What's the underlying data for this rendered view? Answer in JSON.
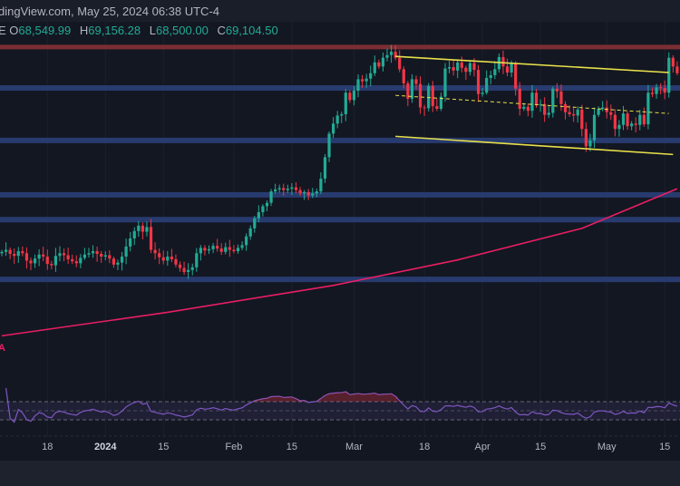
{
  "header": {
    "source_text": "dingView.com, May 25, 2024 06:38 UTC-4",
    "ohlc": {
      "prefix": "E",
      "o_label": "O",
      "o": "68,549.99",
      "h_label": "H",
      "h": "69,156.28",
      "l_label": "L",
      "l": "68,500.00",
      "c_label": "C",
      "c": "69,104.50"
    }
  },
  "ma_label": "A",
  "colors": {
    "up": "#22ab94",
    "down": "#f23645",
    "zone": "#2a3f78",
    "resistance": "#7a2e33",
    "channel": "#e8e04a",
    "ma": "#e91e63",
    "rsi": "#7e57c2",
    "background": "#131722"
  },
  "chart_data": {
    "type": "candlestick",
    "start_date": "2023-12-07",
    "ylim": [
      21950,
      75545
    ],
    "grid": true,
    "closes": [
      42500,
      42800,
      42200,
      41900,
      42600,
      42300,
      41200,
      40800,
      41500,
      42100,
      41800,
      40700,
      40500,
      41900,
      42300,
      42000,
      41400,
      41100,
      40800,
      41600,
      42100,
      42300,
      42600,
      42200,
      41800,
      42000,
      41500,
      40600,
      40900,
      41800,
      43300,
      44500,
      45600,
      46400,
      45500,
      46200,
      42800,
      42300,
      41700,
      41200,
      41800,
      41400,
      40600,
      40100,
      39500,
      39800,
      40200,
      42300,
      43100,
      42700,
      42900,
      43400,
      43000,
      42500,
      43200,
      42800,
      42600,
      43100,
      43500,
      44800,
      46000,
      47500,
      48400,
      49300,
      49800,
      51500,
      51800,
      52000,
      51700,
      51900,
      52100,
      51700,
      51200,
      51400,
      50900,
      51200,
      51500,
      53400,
      56600,
      60100,
      61600,
      62800,
      63000,
      66200,
      65100,
      66500,
      68200,
      67900,
      68300,
      69100,
      70700,
      70100,
      71400,
      71800,
      72300,
      71400,
      69700,
      67600,
      65300,
      68200,
      67500,
      64000,
      63900,
      67200,
      64200,
      63800,
      65600,
      69800,
      70000,
      69500,
      70700,
      69900,
      69300,
      70600,
      69600,
      66000,
      66200,
      68400,
      68800,
      69700,
      71500,
      70100,
      69200,
      70600,
      66800,
      63800,
      64100,
      63500,
      66200,
      64400,
      64500,
      62900,
      63200,
      66800,
      66400,
      64500,
      63300,
      63000,
      62800,
      63700,
      60800,
      58200,
      59100,
      62900,
      63800,
      64000,
      63300,
      62900,
      60800,
      61400,
      63100,
      61200,
      61600,
      61400,
      62900,
      61500,
      66200,
      66000,
      67000,
      66900,
      66200,
      71400,
      70100,
      69100
    ],
    "horizontal_levels": [
      66900,
      59100,
      51000,
      47300,
      38400
    ],
    "resistance_level": 73000,
    "channel": {
      "upper": [
        [
          "2024-03-11",
          71600
        ],
        [
          "2024-05-16",
          69200
        ]
      ],
      "middle": [
        [
          "2024-03-11",
          65800
        ],
        [
          "2024-05-16",
          63100
        ]
      ],
      "lower": [
        [
          "2024-03-11",
          59700
        ],
        [
          "2024-05-17",
          57000
        ]
      ]
    },
    "moving_average": [
      [
        0,
        30000
      ],
      [
        40,
        33500
      ],
      [
        80,
        37500
      ],
      [
        110,
        41300
      ],
      [
        140,
        46000
      ],
      [
        163,
        51900
      ]
    ],
    "rsi": {
      "levels": [
        70,
        50,
        30
      ],
      "ylim": [
        0,
        100
      ]
    },
    "x_ticks": [
      {
        "label": "18",
        "day": 11
      },
      {
        "label": "2024",
        "day": 25,
        "bold": true
      },
      {
        "label": "15",
        "day": 39
      },
      {
        "label": "Feb",
        "day": 56
      },
      {
        "label": "15",
        "day": 70
      },
      {
        "label": "Mar",
        "day": 85
      },
      {
        "label": "18",
        "day": 102
      },
      {
        "label": "Apr",
        "day": 116
      },
      {
        "label": "15",
        "day": 130
      },
      {
        "label": "May",
        "day": 146
      },
      {
        "label": "15",
        "day": 160
      }
    ]
  }
}
